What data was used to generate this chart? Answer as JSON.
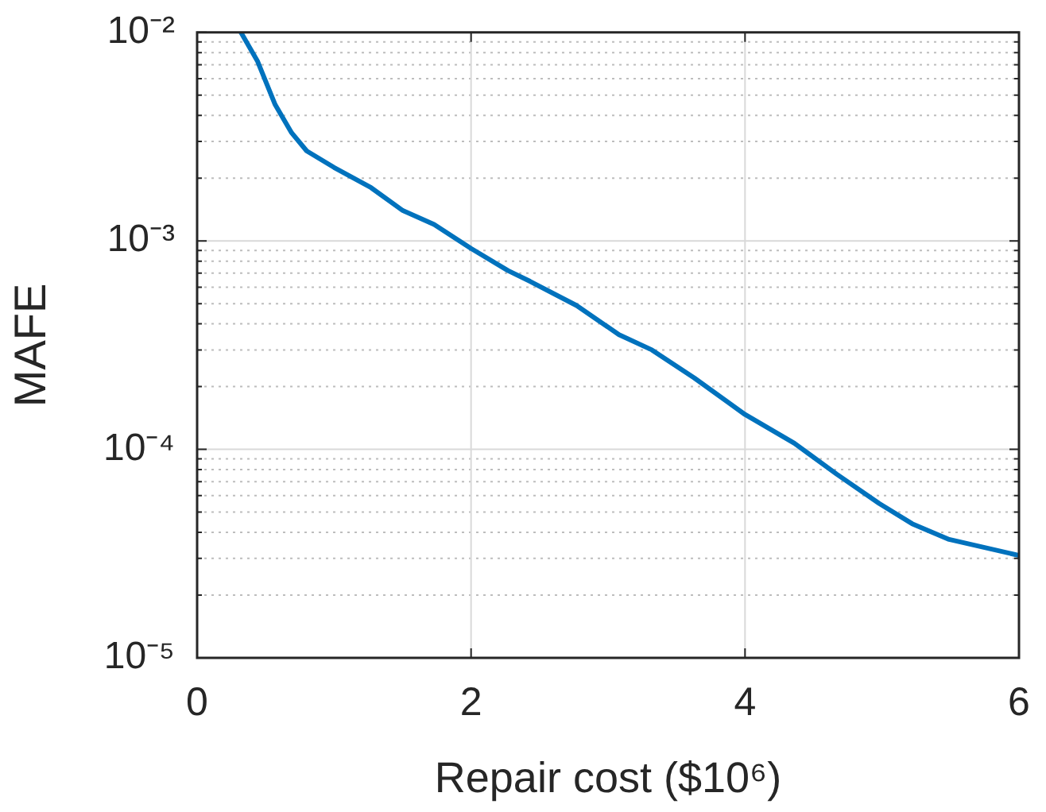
{
  "chart_data": {
    "type": "line",
    "xlabel": "Repair cost ($10⁶)",
    "ylabel": "MAFE",
    "log": "y",
    "grid": true,
    "marker": "none",
    "line_style": "solid",
    "xlim": [
      0,
      6
    ],
    "xticks": [
      0,
      2,
      4,
      6
    ],
    "ylim": [
      1e-05,
      0.01
    ],
    "yticks": [
      {
        "value": 1e-05,
        "label": "10⁻⁵"
      },
      {
        "value": 2e-05,
        "label": null
      },
      {
        "value": 3e-05,
        "label": null
      },
      {
        "value": 4e-05,
        "label": null
      },
      {
        "value": 5e-05,
        "label": null
      },
      {
        "value": 6e-05,
        "label": null
      },
      {
        "value": 7e-05,
        "label": null
      },
      {
        "value": 8e-05,
        "label": null
      },
      {
        "value": 9e-05,
        "label": null
      },
      {
        "value": 0.0001,
        "label": "10⁻⁴"
      },
      {
        "value": 0.0002,
        "label": null
      },
      {
        "value": 0.0003,
        "label": null
      },
      {
        "value": 0.0004,
        "label": null
      },
      {
        "value": 0.0005,
        "label": null
      },
      {
        "value": 0.0006,
        "label": null
      },
      {
        "value": 0.0007,
        "label": null
      },
      {
        "value": 0.0008,
        "label": null
      },
      {
        "value": 0.0009,
        "label": null
      },
      {
        "value": 0.001,
        "label": "10⁻³"
      },
      {
        "value": 0.002,
        "label": null
      },
      {
        "value": 0.003,
        "label": null
      },
      {
        "value": 0.004,
        "label": null
      },
      {
        "value": 0.005,
        "label": null
      },
      {
        "value": 0.006,
        "label": null
      },
      {
        "value": 0.007,
        "label": null
      },
      {
        "value": 0.008,
        "label": null
      },
      {
        "value": 0.009,
        "label": null
      },
      {
        "value": 0.01,
        "label": "10⁻²"
      }
    ],
    "x": [
      0.32,
      0.44,
      0.57,
      0.69,
      0.8,
      1.0,
      1.27,
      1.5,
      1.73,
      2.0,
      2.27,
      2.43,
      2.77,
      3.08,
      3.32,
      3.63,
      4.0,
      4.36,
      4.67,
      4.98,
      5.22,
      5.49,
      6.0
    ],
    "series": [
      {
        "color": "#0072bd",
        "values": [
          0.01,
          0.0073,
          0.0045,
          0.0033,
          0.0027,
          0.00225,
          0.0018,
          0.0014,
          0.0012,
          0.00092,
          0.00072,
          0.00064,
          0.00049,
          0.000355,
          0.0003,
          0.00022,
          0.000147,
          0.000107,
          7.6e-05,
          5.5e-05,
          4.4e-05,
          3.7e-05,
          3.1e-05
        ]
      }
    ]
  }
}
